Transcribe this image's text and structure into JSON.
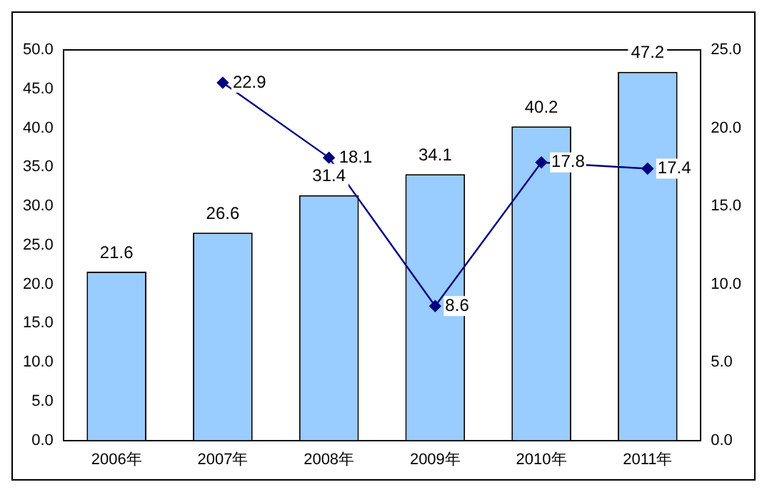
{
  "chart_data": {
    "type": "bar",
    "categories": [
      "2006年",
      "2007年",
      "2008年",
      "2009年",
      "2010年",
      "2011年"
    ],
    "series": [
      {
        "color": "#99ccff",
        "values": [
          21.6,
          26.6,
          31.4,
          34.1,
          40.2,
          47.2
        ]
      },
      {
        "type": "line",
        "axis": "y2",
        "color": "#000080",
        "values": [
          null,
          22.9,
          18.1,
          8.6,
          17.8,
          17.4
        ]
      }
    ],
    "ylim": [
      0,
      50
    ],
    "yticks": [
      {
        "value": 0,
        "label": "0.0"
      },
      {
        "value": 5,
        "label": "5.0"
      },
      {
        "value": 10,
        "label": "10.0"
      },
      {
        "value": 15,
        "label": "15.0"
      },
      {
        "value": 20,
        "label": "20.0"
      },
      {
        "value": 25,
        "label": "25.0"
      },
      {
        "value": 30,
        "label": "30.0"
      },
      {
        "value": 35,
        "label": "35.0"
      },
      {
        "value": 40,
        "label": "40.0"
      },
      {
        "value": 45,
        "label": "45.0"
      },
      {
        "value": 50,
        "label": "50.0"
      }
    ],
    "y2lim": [
      0,
      25
    ],
    "y2ticks": [
      {
        "value": 0,
        "label": "0.0"
      },
      {
        "value": 5,
        "label": "5.0"
      },
      {
        "value": 10,
        "label": "10.0"
      },
      {
        "value": 15,
        "label": "15.0"
      },
      {
        "value": 20,
        "label": "20.0"
      },
      {
        "value": 25,
        "label": "25.0"
      }
    ],
    "grid": false,
    "legend": false,
    "marker": "diamond",
    "line_style": "solid",
    "data_labels": true
  }
}
